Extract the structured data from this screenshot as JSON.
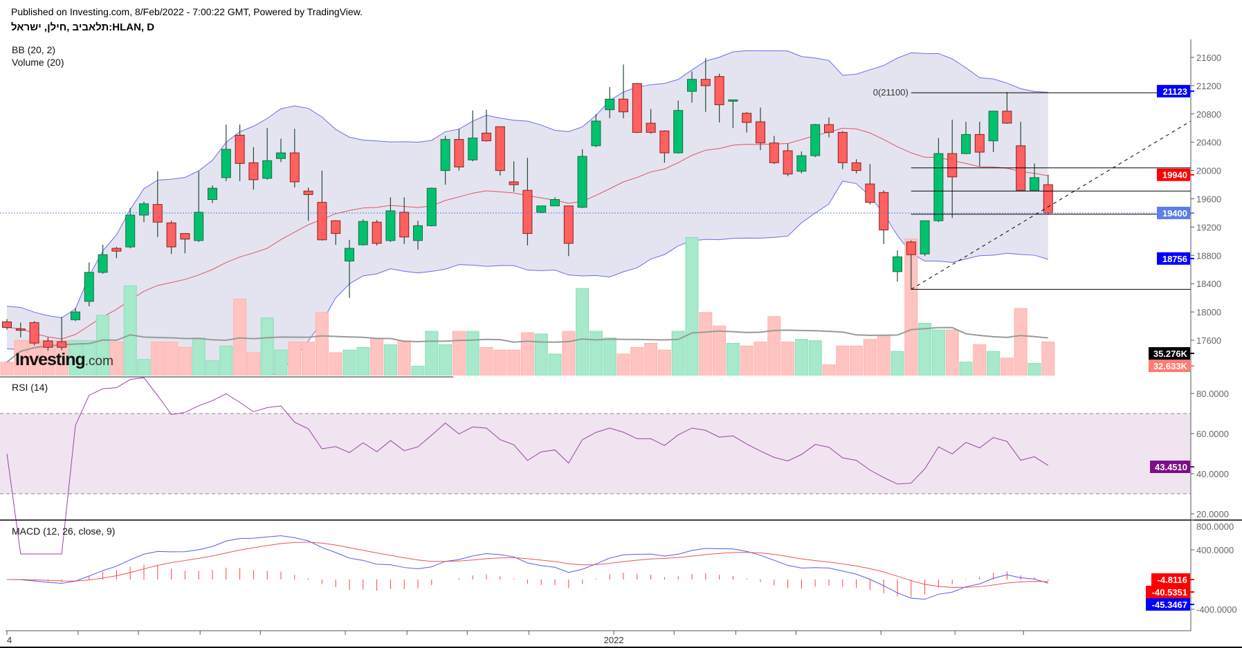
{
  "header": {
    "published": "Published on Investing.com, 8/Feb/2022 - 7:00:22 GMT, Powered by TradingView.",
    "symbol": "תלאביב ,חילן, ישראל:HLAN, D"
  },
  "legends": {
    "bb": "BB (20, 2)",
    "volume": "Volume (20)",
    "rsi": "RSI (14)",
    "macd": "MACD (12, 26, close, 9)"
  },
  "logo": {
    "main": "Investing",
    "suffix": ".com"
  },
  "colors": {
    "up": "#00c26e",
    "down": "#ff6060",
    "bb_band": "#6a6af0",
    "bb_basis": "#e0545c",
    "bb_fill": "#e4e4f0",
    "rsi": "#9c3fa8",
    "rsi_fill": "#f0e4f0",
    "macd": "#5858f0",
    "signal": "#f05050"
  },
  "chart_data": [
    {
      "type": "candlestick",
      "title": "HLAN, D",
      "yticks": [
        17600,
        18000,
        18400,
        18800,
        19200,
        19600,
        20000,
        20400,
        20800,
        21200,
        21600
      ],
      "ylim": [
        17450,
        21850
      ],
      "xticks": [
        {
          "index": 0,
          "label": "4"
        },
        {
          "index": 5.2,
          "label": ""
        },
        {
          "index": 9.6,
          "label": ""
        },
        {
          "index": 14.1,
          "label": ""
        },
        {
          "index": 18.5,
          "label": ""
        },
        {
          "index": 24.7,
          "label": ""
        },
        {
          "index": 29.2,
          "label": ""
        },
        {
          "index": 33.6,
          "label": ""
        },
        {
          "index": 38.1,
          "label": ""
        },
        {
          "index": 44.3,
          "label": "2022"
        },
        {
          "index": 48.7,
          "label": ""
        },
        {
          "index": 53.2,
          "label": ""
        },
        {
          "index": 57.6,
          "label": ""
        },
        {
          "index": 63.8,
          "label": ""
        },
        {
          "index": 69.2,
          "label": ""
        },
        {
          "index": 74.2,
          "label": ""
        }
      ],
      "ohlc": [
        [
          17860,
          17900,
          17750,
          17780
        ],
        [
          17760,
          17850,
          17640,
          17750
        ],
        [
          17850,
          17870,
          17530,
          17560
        ],
        [
          17590,
          17640,
          17450,
          17500
        ],
        [
          17580,
          17930,
          17460,
          17500
        ],
        [
          17890,
          18060,
          17870,
          18000
        ],
        [
          18150,
          18700,
          18080,
          18560
        ],
        [
          18560,
          18950,
          18540,
          18810
        ],
        [
          18900,
          18920,
          18760,
          18860
        ],
        [
          18920,
          19470,
          18900,
          19370
        ],
        [
          19370,
          19560,
          19270,
          19530
        ],
        [
          19520,
          19990,
          19060,
          19270
        ],
        [
          19260,
          19290,
          18820,
          18920
        ],
        [
          19110,
          19110,
          18830,
          19030
        ],
        [
          19010,
          19990,
          18990,
          19410
        ],
        [
          19590,
          19790,
          19540,
          19750
        ],
        [
          19900,
          20650,
          19850,
          20300
        ],
        [
          20500,
          20650,
          19850,
          20100
        ],
        [
          20110,
          20330,
          19730,
          19870
        ],
        [
          19890,
          20600,
          19870,
          20140
        ],
        [
          20170,
          20450,
          20120,
          20250
        ],
        [
          20250,
          20590,
          19760,
          19840
        ],
        [
          19710,
          19760,
          19290,
          19660
        ],
        [
          19550,
          20000,
          19010,
          19020
        ],
        [
          19290,
          19300,
          18950,
          19110
        ],
        [
          18720,
          19020,
          18200,
          18900
        ],
        [
          18950,
          19310,
          18940,
          19280
        ],
        [
          19270,
          19300,
          18940,
          18970
        ],
        [
          19010,
          19620,
          18990,
          19430
        ],
        [
          19410,
          19620,
          18960,
          19060
        ],
        [
          19010,
          19290,
          18880,
          19220
        ],
        [
          19220,
          19760,
          19210,
          19750
        ],
        [
          20000,
          20490,
          19800,
          20440
        ],
        [
          20440,
          20590,
          20000,
          20050
        ],
        [
          20150,
          20850,
          20130,
          20460
        ],
        [
          20530,
          20860,
          20410,
          20420
        ],
        [
          20620,
          20620,
          19930,
          20000
        ],
        [
          19840,
          20130,
          19700,
          19800
        ],
        [
          19720,
          20180,
          18940,
          19110
        ],
        [
          19410,
          19500,
          19400,
          19500
        ],
        [
          19500,
          19620,
          19500,
          19590
        ],
        [
          19500,
          19500,
          18790,
          18970
        ],
        [
          19480,
          20300,
          19470,
          20200
        ],
        [
          20350,
          20800,
          20330,
          20700
        ],
        [
          20860,
          21180,
          20740,
          21010
        ],
        [
          21010,
          21500,
          20740,
          20830
        ],
        [
          21230,
          21240,
          20530,
          20540
        ],
        [
          20670,
          20870,
          20520,
          20540
        ],
        [
          20560,
          20570,
          20110,
          20250
        ],
        [
          20250,
          20990,
          20240,
          20850
        ],
        [
          21120,
          21400,
          20960,
          21290
        ],
        [
          21290,
          21590,
          20830,
          21200
        ],
        [
          21330,
          21370,
          20680,
          20930
        ],
        [
          20980,
          21000,
          20600,
          21000
        ],
        [
          20810,
          20830,
          20540,
          20680
        ],
        [
          20690,
          20890,
          20290,
          20390
        ],
        [
          20390,
          20490,
          20090,
          20110
        ],
        [
          20280,
          20380,
          19920,
          19950
        ],
        [
          19990,
          20270,
          19960,
          20210
        ],
        [
          20210,
          20660,
          20190,
          20650
        ],
        [
          20650,
          20750,
          20470,
          20540
        ],
        [
          20540,
          20560,
          20020,
          20110
        ],
        [
          20110,
          20160,
          19960,
          20000
        ],
        [
          19810,
          20090,
          19520,
          19550
        ],
        [
          19690,
          19720,
          18960,
          19160
        ],
        [
          18570,
          18870,
          18430,
          18780
        ],
        [
          18990,
          19010,
          18320,
          18810
        ],
        [
          18820,
          19290,
          18790,
          19290
        ],
        [
          19290,
          20460,
          19270,
          20240
        ],
        [
          20240,
          20720,
          19330,
          19910
        ],
        [
          20240,
          20690,
          20230,
          20510
        ],
        [
          20510,
          20690,
          20060,
          20260
        ],
        [
          20420,
          20840,
          20260,
          20840
        ],
        [
          20840,
          21110,
          20660,
          20670
        ],
        [
          20350,
          20690,
          19720,
          19720
        ],
        [
          19720,
          20100,
          19720,
          19900
        ],
        [
          19800,
          19940,
          19380,
          19400
        ]
      ],
      "volume_k": [
        13,
        34,
        34,
        34,
        34,
        34,
        34,
        58.5,
        32.5,
        87.1,
        15.6,
        32.5,
        32.5,
        27.3,
        36.4,
        14.3,
        28.6,
        74.1,
        22.1,
        55.9,
        24.7,
        32.5,
        32.5,
        61.1,
        22.1,
        24.7,
        27.3,
        36.4,
        29.9,
        33.8,
        9.1,
        42.9,
        29.9,
        42.9,
        42.9,
        27.3,
        24.7,
        24.7,
        41.6,
        40.3,
        20.8,
        42.9,
        84.5,
        42.9,
        36.4,
        20.8,
        27.3,
        31.2,
        24.7,
        42.9,
        133.9,
        61.1,
        48.1,
        31.2,
        28.6,
        32.5,
        57.2,
        32.5,
        35.1,
        33.8,
        10.4,
        28.6,
        28.6,
        35.1,
        39,
        23.4,
        132.6,
        50.7,
        44.2,
        44.2,
        13,
        29.9,
        23.4,
        16.9,
        65,
        11.7,
        32.6
      ],
      "bb": {
        "period": 20,
        "mult": 2
      },
      "volume_ma_period": 20,
      "fib": {
        "label": "0(21100)",
        "high": 21100,
        "low": 18320,
        "levels": [
          0,
          0.382,
          0.5,
          0.618,
          1
        ],
        "start_index": 66
      },
      "trendline": {
        "from": [
          66,
          18320
        ],
        "to_price_at_axis": 20700
      },
      "last_price_line": 19400,
      "price_labels": [
        {
          "text": "21123",
          "value": 21123,
          "bg": "#0000ff",
          "fg": "#ffffff"
        },
        {
          "text": "19940",
          "value": 19940,
          "bg": "#ff0000",
          "fg": "#ffffff"
        },
        {
          "text": "19400",
          "value": 19400,
          "bg": "#5b7fe6",
          "fg": "#ffffff"
        },
        {
          "text": "18756",
          "value": 18756,
          "bg": "#0000ff",
          "fg": "#ffffff"
        }
      ],
      "volume_labels": [
        {
          "text": "35.276K",
          "bg": "#000000",
          "fg": "#ffffff"
        },
        {
          "text": "32.633K",
          "bg": "#ff7b73",
          "fg": "#ffffff"
        }
      ]
    },
    {
      "type": "line",
      "title": "RSI (14)",
      "period": 14,
      "yticks": [
        {
          "v": 20,
          "t": "20.0000"
        },
        {
          "v": 40,
          "t": "40.0000"
        },
        {
          "v": 60,
          "t": "60.0000"
        },
        {
          "v": 80,
          "t": "80.0000"
        }
      ],
      "bands": [
        30,
        70
      ],
      "last_label": {
        "text": "43.4510",
        "value": 43.451,
        "bg": "#7b0f84"
      }
    },
    {
      "type": "line",
      "title": "MACD (12, 26, close, 9)",
      "params": [
        12,
        26,
        9
      ],
      "yticks": [
        {
          "v": 800,
          "t": "800.0000"
        },
        {
          "v": 400,
          "t": "400.0000"
        },
        {
          "v": -400,
          "t": "-400.0000"
        }
      ],
      "last_labels": [
        {
          "text": "-4.8116",
          "value": -4.8116,
          "bg": "#ff0000"
        },
        {
          "text": "-40.5351",
          "value": -40.5351,
          "bg": "#ff0000"
        },
        {
          "text": "-45.3467",
          "value": -45.3467,
          "bg": "#0000ff"
        }
      ]
    }
  ]
}
